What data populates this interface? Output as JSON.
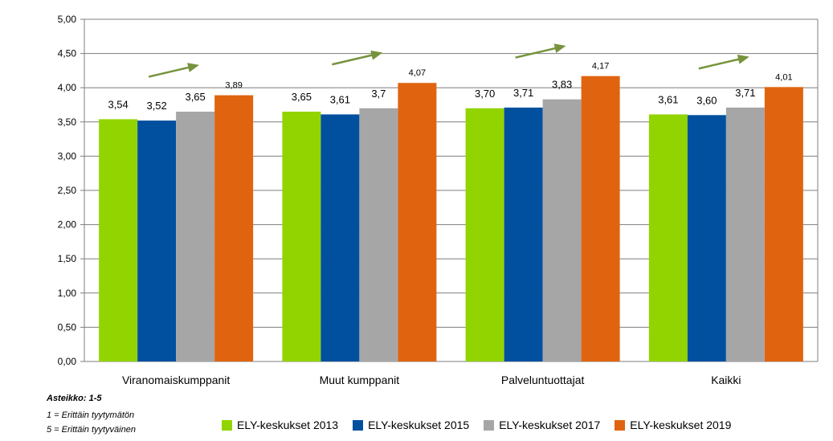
{
  "chart_data": {
    "type": "bar",
    "categories": [
      "Viranomaiskumppanit",
      "Muut kumppanit",
      "Palveluntuottajat",
      "Kaikki"
    ],
    "series": [
      {
        "name": "ELY-keskukset 2013",
        "color": "#92D400",
        "values": [
          3.54,
          3.65,
          3.7,
          3.61
        ],
        "labels": [
          "3,54",
          "3,65",
          "3,70",
          "3,61"
        ]
      },
      {
        "name": "ELY-keskukset 2015",
        "color": "#00509F",
        "values": [
          3.52,
          3.61,
          3.71,
          3.6
        ],
        "labels": [
          "3,52",
          "3,61",
          "3,71",
          "3,60"
        ]
      },
      {
        "name": "ELY-keskukset 2017",
        "color": "#A6A6A6",
        "values": [
          3.65,
          3.7,
          3.83,
          3.71
        ],
        "labels": [
          "3,65",
          "3,7",
          "3,83",
          "3,71"
        ]
      },
      {
        "name": "ELY-keskukset 2019",
        "color": "#E0640F",
        "values": [
          3.89,
          4.07,
          4.17,
          4.01
        ],
        "labels": [
          "3,89",
          "4,07",
          "4,17",
          "4,01"
        ]
      }
    ],
    "ylim": [
      0,
      5
    ],
    "yticks": [
      0,
      0.5,
      1,
      1.5,
      2,
      2.5,
      3,
      3.5,
      4,
      4.5,
      5
    ],
    "ytick_labels": [
      "0,00",
      "0,50",
      "1,00",
      "1,50",
      "2,00",
      "2,50",
      "3,00",
      "3,50",
      "4,00",
      "4,50",
      "5,00"
    ],
    "grid": true,
    "legend_position": "bottom",
    "annotations": {
      "trend_arrow_color": "#77933C",
      "trend_arrows": "up arrow above each category"
    }
  },
  "scale_note": {
    "title": "Asteikko: 1-5",
    "line1": "1 = Erittäin tyytymätön",
    "line2": "5 = Erittäin tyytyväinen"
  }
}
